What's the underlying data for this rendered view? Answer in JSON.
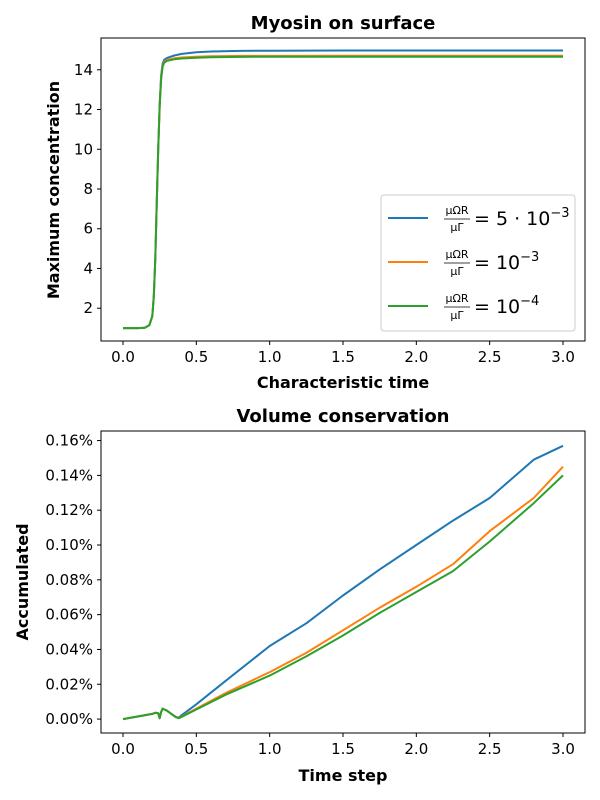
{
  "chart_data": [
    {
      "type": "line",
      "title": "Myosin on surface",
      "xlabel": "Characteristic time",
      "ylabel": "Maximum concentration",
      "xlim": [
        -0.15,
        3.15
      ],
      "ylim": [
        0.35,
        15.6
      ],
      "xticks": [
        0.0,
        0.5,
        1.0,
        1.5,
        2.0,
        2.5,
        3.0
      ],
      "xtick_labels": [
        "0.0",
        "0.5",
        "1.0",
        "1.5",
        "2.0",
        "2.5",
        "3.0"
      ],
      "yticks": [
        2,
        4,
        6,
        8,
        10,
        12,
        14
      ],
      "ytick_labels": [
        "2",
        "4",
        "6",
        "8",
        "10",
        "12",
        "14"
      ],
      "grid": false,
      "legend_position": "lower-right",
      "series": [
        {
          "name": "5·10⁻³",
          "legend": {
            "frac_num": "μΩR",
            "frac_den": "μΓ",
            "rhs": "= 5 · 10",
            "exp": "−3"
          },
          "color": "#1f77b4",
          "x": [
            0.0,
            0.1,
            0.15,
            0.18,
            0.2,
            0.21,
            0.22,
            0.23,
            0.24,
            0.25,
            0.26,
            0.27,
            0.28,
            0.3,
            0.35,
            0.4,
            0.5,
            0.6,
            0.8,
            1.0,
            1.5,
            2.0,
            2.5,
            3.0
          ],
          "y": [
            1.0,
            1.0,
            1.02,
            1.15,
            1.6,
            2.6,
            4.5,
            7.2,
            10.0,
            12.3,
            13.7,
            14.3,
            14.5,
            14.6,
            14.72,
            14.8,
            14.88,
            14.92,
            14.95,
            14.96,
            14.97,
            14.97,
            14.97,
            14.97
          ]
        },
        {
          "name": "10⁻³",
          "legend": {
            "frac_num": "μΩR",
            "frac_den": "μΓ",
            "rhs": "= 10",
            "exp": "−3"
          },
          "color": "#ff7f0e",
          "x": [
            0.0,
            0.1,
            0.15,
            0.18,
            0.2,
            0.21,
            0.22,
            0.23,
            0.24,
            0.25,
            0.26,
            0.27,
            0.28,
            0.3,
            0.35,
            0.4,
            0.5,
            0.6,
            0.8,
            1.0,
            1.5,
            2.0,
            2.5,
            3.0
          ],
          "y": [
            1.0,
            1.0,
            1.02,
            1.15,
            1.6,
            2.6,
            4.5,
            7.2,
            10.0,
            12.2,
            13.6,
            14.2,
            14.4,
            14.5,
            14.58,
            14.62,
            14.66,
            14.68,
            14.7,
            14.7,
            14.71,
            14.71,
            14.71,
            14.71
          ]
        },
        {
          "name": "10⁻⁴",
          "legend": {
            "frac_num": "μΩR",
            "frac_den": "μΓ",
            "rhs": "= 10",
            "exp": "−4"
          },
          "color": "#2ca02c",
          "x": [
            0.0,
            0.1,
            0.15,
            0.18,
            0.2,
            0.21,
            0.22,
            0.23,
            0.24,
            0.25,
            0.26,
            0.27,
            0.28,
            0.3,
            0.35,
            0.4,
            0.5,
            0.6,
            0.8,
            1.0,
            1.5,
            2.0,
            2.5,
            3.0
          ],
          "y": [
            1.0,
            1.0,
            1.02,
            1.15,
            1.6,
            2.6,
            4.5,
            7.2,
            10.0,
            12.2,
            13.5,
            14.15,
            14.35,
            14.45,
            14.53,
            14.57,
            14.61,
            14.63,
            14.65,
            14.66,
            14.66,
            14.66,
            14.66,
            14.66
          ]
        }
      ]
    },
    {
      "type": "line",
      "title": "Volume conservation",
      "xlabel": "Time step",
      "ylabel": "Accumulated",
      "xlim": [
        -0.15,
        3.15
      ],
      "ylim": [
        -0.008,
        0.1655
      ],
      "xticks": [
        0.0,
        0.5,
        1.0,
        1.5,
        2.0,
        2.5,
        3.0
      ],
      "xtick_labels": [
        "0.0",
        "0.5",
        "1.0",
        "1.5",
        "2.0",
        "2.5",
        "3.0"
      ],
      "yticks": [
        0.0,
        0.02,
        0.04,
        0.06,
        0.08,
        0.1,
        0.12,
        0.14,
        0.16
      ],
      "ytick_labels": [
        "0.00%",
        "0.02%",
        "0.04%",
        "0.06%",
        "0.08%",
        "0.10%",
        "0.12%",
        "0.14%",
        "0.16%"
      ],
      "grid": false,
      "legend_position": "none",
      "series": [
        {
          "color": "#1f77b4",
          "x": [
            0.0,
            0.1,
            0.2,
            0.22,
            0.24,
            0.25,
            0.26,
            0.27,
            0.3,
            0.33,
            0.36,
            0.38,
            0.4,
            0.5,
            0.7,
            1.0,
            1.25,
            1.5,
            1.75,
            2.0,
            2.25,
            2.5,
            2.8,
            3.0
          ],
          "y": [
            0.0,
            0.0015,
            0.003,
            0.0036,
            0.0034,
            0.0005,
            0.004,
            0.006,
            0.0048,
            0.003,
            0.0013,
            0.0008,
            0.0022,
            0.0085,
            0.022,
            0.042,
            0.055,
            0.071,
            0.086,
            0.1,
            0.114,
            0.127,
            0.149,
            0.157
          ]
        },
        {
          "color": "#ff7f0e",
          "x": [
            0.0,
            0.1,
            0.2,
            0.22,
            0.24,
            0.25,
            0.26,
            0.27,
            0.3,
            0.33,
            0.36,
            0.38,
            0.4,
            0.5,
            0.7,
            1.0,
            1.25,
            1.5,
            1.75,
            2.0,
            2.25,
            2.5,
            2.8,
            3.0
          ],
          "y": [
            0.0,
            0.0015,
            0.003,
            0.0036,
            0.0034,
            0.0005,
            0.004,
            0.006,
            0.0048,
            0.003,
            0.0012,
            0.0006,
            0.0015,
            0.006,
            0.015,
            0.027,
            0.038,
            0.051,
            0.064,
            0.076,
            0.089,
            0.108,
            0.127,
            0.145
          ]
        },
        {
          "color": "#2ca02c",
          "x": [
            0.0,
            0.1,
            0.2,
            0.22,
            0.24,
            0.25,
            0.26,
            0.27,
            0.3,
            0.33,
            0.36,
            0.38,
            0.4,
            0.5,
            0.7,
            1.0,
            1.25,
            1.5,
            1.75,
            2.0,
            2.25,
            2.5,
            2.8,
            3.0
          ],
          "y": [
            0.0,
            0.0015,
            0.003,
            0.0036,
            0.0034,
            0.0005,
            0.004,
            0.006,
            0.0048,
            0.003,
            0.0011,
            0.0005,
            0.0013,
            0.0055,
            0.014,
            0.025,
            0.036,
            0.048,
            0.061,
            0.073,
            0.085,
            0.102,
            0.124,
            0.14
          ]
        }
      ]
    }
  ]
}
